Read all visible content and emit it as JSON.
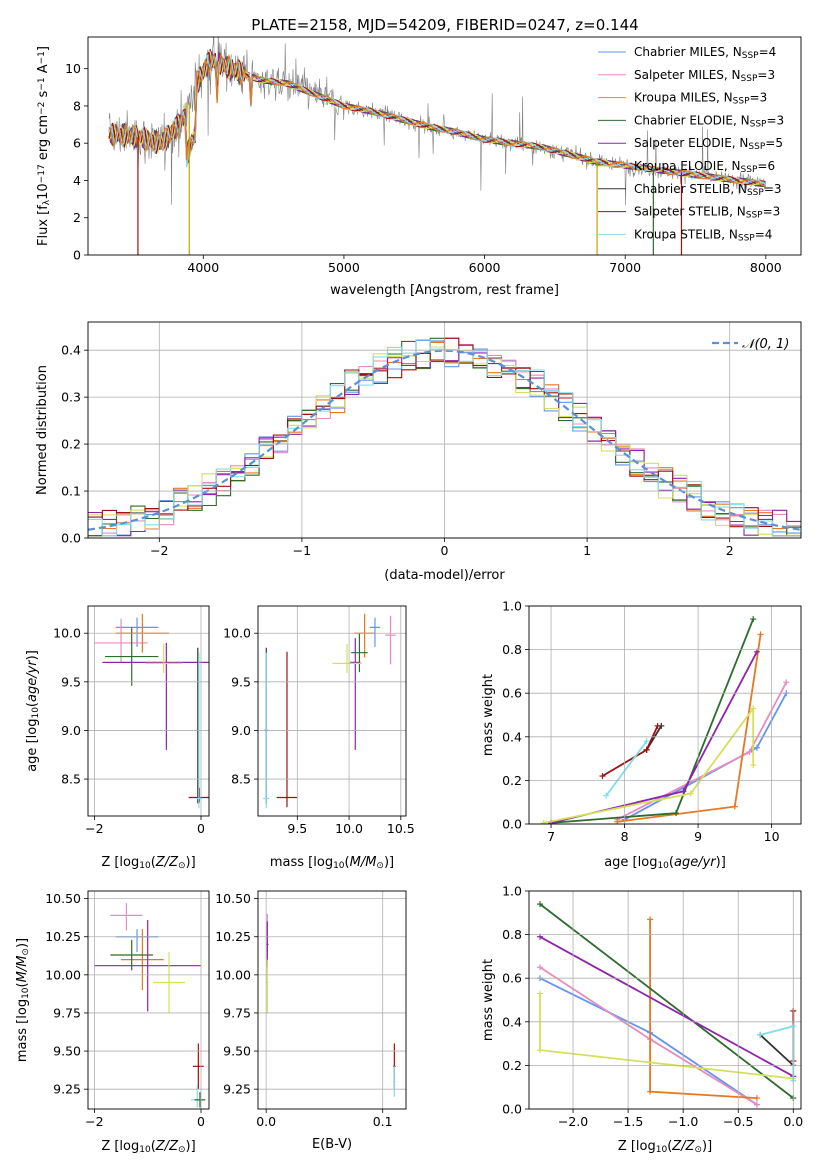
{
  "figure": {
    "title": "PLATE=2158, MJD=54209, FIBERID=0247, z=0.144"
  },
  "colors": {
    "Chabrier MILES": "#6495ed",
    "Salpeter MILES": "#e88bbf",
    "Kroupa MILES": "#c8a000",
    "Chabrier ELODIE": "#2e6b2e",
    "Salpeter ELODIE": "#8e24aa",
    "Kroupa ELODIE": "#d4e157",
    "Chabrier STELIB": "#333333",
    "Salpeter STELIB": "#a01010",
    "Kroupa STELIB": "#80deea",
    "data": "#808080",
    "orange": "#e87722",
    "gauss": "#5b8fd6",
    "grid": "#b0b0b0"
  },
  "chart_data": [
    {
      "id": "spectrum",
      "type": "line",
      "title": "PLATE=2158, MJD=54209, FIBERID=0247, z=0.144",
      "xlabel": "wavelength [Angstrom, rest frame]",
      "ylabel": "Flux [f_λ 10^-17 erg cm^-2 s^-1 A^-1]",
      "xlim": [
        3180,
        8250
      ],
      "ylim": [
        0,
        11.7
      ],
      "xticks": [
        4000,
        5000,
        6000,
        7000,
        8000
      ],
      "yticks": [
        0,
        2,
        4,
        6,
        8,
        10
      ],
      "grid": false,
      "legend_position": "top-right",
      "legend": [
        {
          "label": "Chabrier MILES, N",
          "sub": "SSP",
          "count": "=4",
          "color": "#6495ed"
        },
        {
          "label": "Salpeter MILES, N",
          "sub": "SSP",
          "count": "=3",
          "color": "#e88bbf"
        },
        {
          "label": "Kroupa MILES, N",
          "sub": "SSP",
          "count": "=3",
          "color": "#c8a000"
        },
        {
          "label": "Chabrier ELODIE, N",
          "sub": "SSP",
          "count": "=3",
          "color": "#2e6b2e"
        },
        {
          "label": "Salpeter ELODIE, N",
          "sub": "SSP",
          "count": "=5",
          "color": "#8e24aa"
        },
        {
          "label": "Kroupa ELODIE, N",
          "sub": "SSP",
          "count": "=6",
          "color": "#d4e157"
        },
        {
          "label": "Chabrier STELIB, N",
          "sub": "SSP",
          "count": "=3",
          "color": "#333333"
        },
        {
          "label": "Salpeter STELIB, N",
          "sub": "SSP",
          "count": "=3",
          "color": "#a01010"
        },
        {
          "label": "Kroupa STELIB, N",
          "sub": "SSP",
          "count": "=4",
          "color": "#80deea"
        }
      ],
      "continuum": [
        [
          3330,
          6.5
        ],
        [
          3500,
          6.4
        ],
        [
          3700,
          6.0
        ],
        [
          3850,
          7.2
        ],
        [
          3950,
          9.2
        ],
        [
          4050,
          10.5
        ],
        [
          4200,
          10.0
        ],
        [
          4400,
          9.4
        ],
        [
          4600,
          9.2
        ],
        [
          4800,
          8.6
        ],
        [
          5000,
          8.0
        ],
        [
          5200,
          7.7
        ],
        [
          5400,
          7.3
        ],
        [
          5600,
          6.9
        ],
        [
          5800,
          6.6
        ],
        [
          6000,
          6.2
        ],
        [
          6200,
          6.0
        ],
        [
          6400,
          5.8
        ],
        [
          6600,
          5.4
        ],
        [
          6800,
          5.0
        ],
        [
          7000,
          4.8
        ],
        [
          7200,
          4.6
        ],
        [
          7400,
          4.4
        ],
        [
          7600,
          4.2
        ],
        [
          7800,
          4.0
        ],
        [
          8000,
          3.8
        ]
      ]
    },
    {
      "id": "residuals",
      "type": "step",
      "xlabel": "(data-model)/error",
      "ylabel": "Normed distribution",
      "xlim": [
        -2.5,
        2.5
      ],
      "ylim": [
        0,
        0.46
      ],
      "xticks": [
        -2,
        -1,
        0,
        1,
        2
      ],
      "yticks": [
        0.0,
        0.1,
        0.2,
        0.3,
        0.4
      ],
      "grid": true,
      "legend_position": "top-right",
      "legend": [
        {
          "label": "𝒩(0, 1)",
          "color": "#5b8fd6",
          "dashed": true
        }
      ],
      "bins": 50,
      "gaussian": {
        "mean": 0,
        "sigma": 1
      }
    },
    {
      "id": "Z-age",
      "type": "errorbar",
      "xlabel": "Z [log10(Z/Z⊙)]",
      "ylabel": "age [log10(age/yr)]",
      "xlim": [
        -2.12,
        0.15
      ],
      "ylim": [
        8.12,
        10.28
      ],
      "xticks": [
        -2,
        0
      ],
      "yticks": [
        8.5,
        9.0,
        9.5,
        10.0
      ],
      "grid": true
    },
    {
      "id": "mass-age",
      "type": "errorbar",
      "xlabel": "mass [log10(M/M⊙)]",
      "xlim": [
        9.12,
        10.55
      ],
      "ylim": [
        8.12,
        10.28
      ],
      "xticks": [
        9.5,
        10.0,
        10.5
      ],
      "yticks": [
        8.5,
        9.0,
        9.5,
        10.0
      ],
      "grid": true
    },
    {
      "id": "age-weight",
      "type": "line",
      "xlabel": "age [log10(age/yr)]",
      "ylabel": "mass weight",
      "xlim": [
        6.7,
        10.4
      ],
      "ylim": [
        0,
        1.0
      ],
      "xticks": [
        7,
        8,
        9,
        10
      ],
      "yticks": [
        0.0,
        0.2,
        0.4,
        0.6,
        0.8,
        1.0
      ],
      "grid": true,
      "series": [
        {
          "color": "#6495ed",
          "points": [
            [
              8.0,
              0.02
            ],
            [
              9.8,
              0.35
            ],
            [
              10.2,
              0.6
            ]
          ]
        },
        {
          "color": "#e88bbf",
          "points": [
            [
              7.9,
              0.02
            ],
            [
              9.7,
              0.33
            ],
            [
              10.2,
              0.65
            ]
          ]
        },
        {
          "color": "#e87722",
          "points": [
            [
              7.9,
              0.01
            ],
            [
              9.5,
              0.08
            ],
            [
              9.85,
              0.87
            ]
          ]
        },
        {
          "color": "#2e6b2e",
          "points": [
            [
              7.0,
              0.005
            ],
            [
              8.7,
              0.05
            ],
            [
              9.75,
              0.94
            ]
          ]
        },
        {
          "color": "#8e24aa",
          "points": [
            [
              7.0,
              0.005
            ],
            [
              8.8,
              0.15
            ],
            [
              9.8,
              0.79
            ]
          ]
        },
        {
          "color": "#d4e157",
          "points": [
            [
              6.9,
              0.005
            ],
            [
              8.9,
              0.14
            ],
            [
              9.75,
              0.53
            ],
            [
              9.75,
              0.27
            ]
          ]
        },
        {
          "color": "#333333",
          "points": [
            [
              8.3,
              0.34
            ],
            [
              8.5,
              0.45
            ]
          ]
        },
        {
          "color": "#a01010",
          "points": [
            [
              7.7,
              0.22
            ],
            [
              8.3,
              0.34
            ],
            [
              8.45,
              0.45
            ]
          ]
        },
        {
          "color": "#80deea",
          "points": [
            [
              7.75,
              0.13
            ],
            [
              8.3,
              0.38
            ]
          ]
        }
      ]
    },
    {
      "id": "Z-mass",
      "type": "errorbar",
      "xlabel": "Z [log10(Z/Z⊙)]",
      "ylabel": "mass [log10(M/M⊙)]",
      "xlim": [
        -2.12,
        0.15
      ],
      "ylim": [
        9.12,
        10.55
      ],
      "xticks": [
        -2,
        0
      ],
      "yticks": [
        9.25,
        9.5,
        9.75,
        10.0,
        10.25,
        10.5
      ],
      "grid": true
    },
    {
      "id": "EBV-mass",
      "type": "errorbar",
      "xlabel": "E(B-V)",
      "xlim": [
        -0.007,
        0.12
      ],
      "ylim": [
        9.12,
        10.55
      ],
      "xticks": [
        0.0,
        0.1
      ],
      "yticks": [
        9.25,
        9.5,
        9.75,
        10.0,
        10.25,
        10.5
      ],
      "grid": true
    },
    {
      "id": "Z-weight",
      "type": "line",
      "xlabel": "Z [log10(Z/Z⊙)]",
      "ylabel": "mass weight",
      "xlim": [
        -2.4,
        0.07
      ],
      "ylim": [
        0,
        1.0
      ],
      "xticks": [
        -2.0,
        -1.5,
        -1.0,
        -0.5,
        0.0
      ],
      "yticks": [
        0.0,
        0.2,
        0.4,
        0.6,
        0.8,
        1.0
      ],
      "grid": true,
      "series": [
        {
          "color": "#6495ed",
          "points": [
            [
              -2.3,
              0.6
            ],
            [
              -1.3,
              0.35
            ],
            [
              -0.33,
              0.02
            ]
          ]
        },
        {
          "color": "#e88bbf",
          "points": [
            [
              -2.3,
              0.65
            ],
            [
              -1.3,
              0.32
            ],
            [
              -0.33,
              0.02
            ]
          ]
        },
        {
          "color": "#e87722",
          "points": [
            [
              -1.3,
              0.87
            ],
            [
              -1.3,
              0.08
            ],
            [
              -0.33,
              0.05
            ]
          ]
        },
        {
          "color": "#2e6b2e",
          "points": [
            [
              -2.3,
              0.94
            ],
            [
              0.0,
              0.05
            ]
          ]
        },
        {
          "color": "#8e24aa",
          "points": [
            [
              -2.3,
              0.79
            ],
            [
              0.0,
              0.15
            ]
          ]
        },
        {
          "color": "#d4e157",
          "points": [
            [
              -2.3,
              0.53
            ],
            [
              -2.3,
              0.27
            ],
            [
              0.0,
              0.14
            ]
          ]
        },
        {
          "color": "#333333",
          "points": [
            [
              -0.3,
              0.34
            ],
            [
              0.0,
              0.2
            ]
          ]
        },
        {
          "color": "#a01010",
          "points": [
            [
              0.0,
              0.45
            ],
            [
              0.0,
              0.22
            ]
          ]
        },
        {
          "color": "#80deea",
          "points": [
            [
              -0.3,
              0.34
            ],
            [
              0.0,
              0.38
            ],
            [
              0.0,
              0.13
            ]
          ]
        }
      ]
    }
  ]
}
